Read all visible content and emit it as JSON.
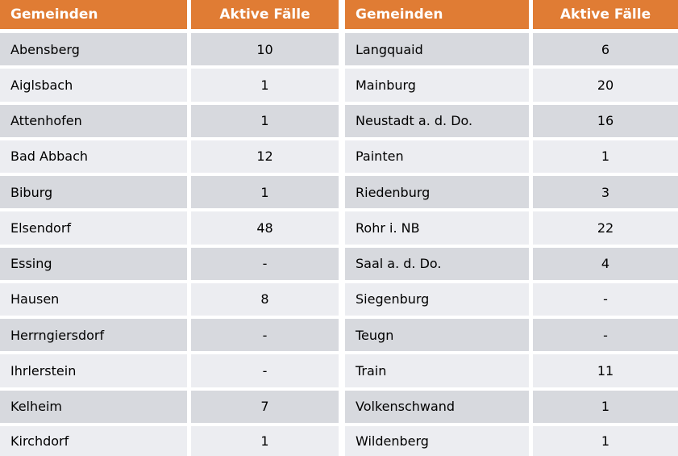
{
  "chart_data": {
    "type": "table",
    "columns": [
      "Gemeinden",
      "Aktive Fälle",
      "Gemeinden",
      "Aktive Fälle"
    ],
    "rows": [
      [
        "Abensberg",
        "10",
        "Langquaid",
        "6"
      ],
      [
        "Aiglsbach",
        "1",
        "Mainburg",
        "20"
      ],
      [
        "Attenhofen",
        "1",
        "Neustadt a. d. Do.",
        "16"
      ],
      [
        "Bad Abbach",
        "12",
        "Painten",
        "1"
      ],
      [
        "Biburg",
        "1",
        "Riedenburg",
        "3"
      ],
      [
        "Elsendorf",
        "48",
        "Rohr i. NB",
        "22"
      ],
      [
        "Essing",
        "-",
        "Saal a. d. Do.",
        "4"
      ],
      [
        "Hausen",
        "8",
        "Siegenburg",
        "-"
      ],
      [
        "Herrngiersdorf",
        "-",
        "Teugn",
        "-"
      ],
      [
        "Ihrlerstein",
        "-",
        "Train",
        "11"
      ],
      [
        "Kelheim",
        "7",
        "Volkenschwand",
        "1"
      ],
      [
        "Kirchdorf",
        "1",
        "Wildenberg",
        "1"
      ]
    ]
  },
  "colors": {
    "header_bg": "#E07C34",
    "header_text": "#FFFFFF",
    "row_dark": "#D7D9DE",
    "row_light": "#ECEDF1",
    "separator": "#FFFFFF",
    "text": "#000000"
  }
}
